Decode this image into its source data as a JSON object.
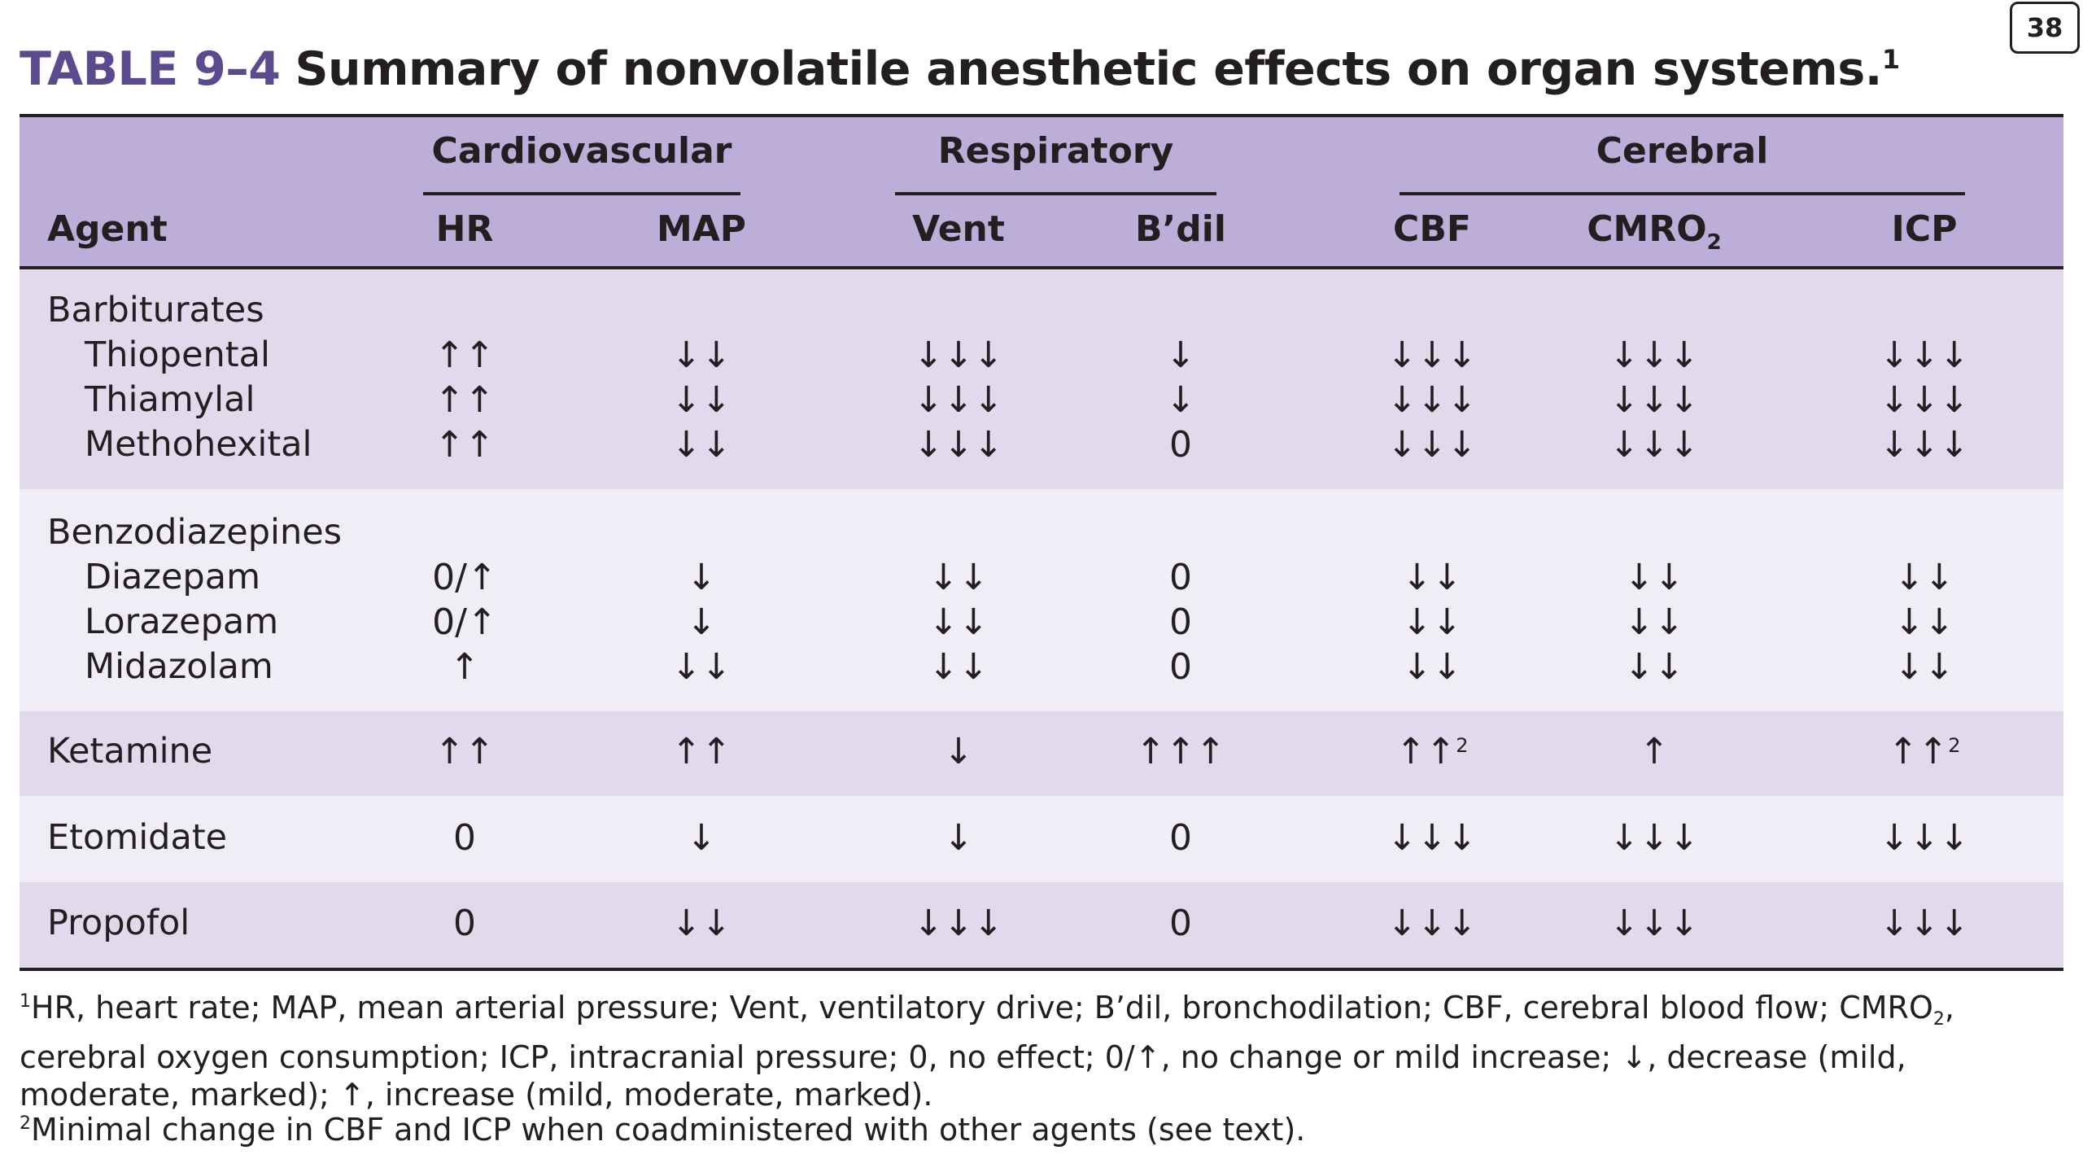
{
  "page_number": "38",
  "title": {
    "label": "TABLE 9–4",
    "text": "Summary of nonvolatile anesthetic effects on organ systems.",
    "footnote_ref": "1"
  },
  "groups": {
    "cardiovascular": "Cardiovascular",
    "respiratory": "Respiratory",
    "cerebral": "Cerebral"
  },
  "columns": {
    "agent": "Agent",
    "hr": "HR",
    "map": "MAP",
    "vent": "Vent",
    "bdil": "B’dil",
    "cbf": "CBF",
    "cmro": "CMRO",
    "cmro_sub": "2",
    "icp": "ICP"
  },
  "rows": [
    {
      "agent": "Barbiturates",
      "indent": false,
      "hr": "",
      "map": "",
      "vent": "",
      "bdil": "",
      "cbf": "",
      "cmro": "",
      "icp": ""
    },
    {
      "agent": "Thiopental",
      "indent": true,
      "hr": "↑↑",
      "map": "↓↓",
      "vent": "↓↓↓",
      "bdil": "↓",
      "cbf": "↓↓↓",
      "cmro": "↓↓↓",
      "icp": "↓↓↓"
    },
    {
      "agent": "Thiamylal",
      "indent": true,
      "hr": "↑↑",
      "map": "↓↓",
      "vent": "↓↓↓",
      "bdil": "↓",
      "cbf": "↓↓↓",
      "cmro": "↓↓↓",
      "icp": "↓↓↓"
    },
    {
      "agent": "Methohexital",
      "indent": true,
      "hr": "↑↑",
      "map": "↓↓",
      "vent": "↓↓↓",
      "bdil": "0",
      "cbf": "↓↓↓",
      "cmro": "↓↓↓",
      "icp": "↓↓↓"
    },
    {
      "agent": "Benzodiazepines",
      "indent": false,
      "hr": "",
      "map": "",
      "vent": "",
      "bdil": "",
      "cbf": "",
      "cmro": "",
      "icp": ""
    },
    {
      "agent": "Diazepam",
      "indent": true,
      "hr": "0/↑",
      "map": "↓",
      "vent": "↓↓",
      "bdil": "0",
      "cbf": "↓↓",
      "cmro": "↓↓",
      "icp": "↓↓"
    },
    {
      "agent": "Lorazepam",
      "indent": true,
      "hr": "0/↑",
      "map": "↓",
      "vent": "↓↓",
      "bdil": "0",
      "cbf": "↓↓",
      "cmro": "↓↓",
      "icp": "↓↓"
    },
    {
      "agent": "Midazolam",
      "indent": true,
      "hr": "↑",
      "map": "↓↓",
      "vent": "↓↓",
      "bdil": "0",
      "cbf": "↓↓",
      "cmro": "↓↓",
      "icp": "↓↓"
    },
    {
      "agent": "Ketamine",
      "indent": false,
      "hr": "↑↑",
      "map": "↑↑",
      "vent": "↓",
      "bdil": "↑↑↑",
      "cbf": "↑↑",
      "cbf_sup": "2",
      "cmro": "↑",
      "icp": "↑↑",
      "icp_sup": "2"
    },
    {
      "agent": "Etomidate",
      "indent": false,
      "hr": "0",
      "map": "↓",
      "vent": "↓",
      "bdil": "0",
      "cbf": "↓↓↓",
      "cmro": "↓↓↓",
      "icp": "↓↓↓"
    },
    {
      "agent": "Propofol",
      "indent": false,
      "hr": "0",
      "map": "↓↓",
      "vent": "↓↓↓",
      "bdil": "0",
      "cbf": "↓↓↓",
      "cmro": "↓↓↓",
      "icp": "↓↓↓"
    }
  ],
  "footnotes": {
    "fn1_mark": "1",
    "fn1_part1": "HR, heart rate; MAP, mean arterial pressure; Vent, ventilatory drive; B’dil, bronchodilation; CBF, cerebral blood flow; CMRO",
    "fn1_sub": "2",
    "fn1_part2": ", cerebral oxygen consumption; ICP, intracranial pressure; 0, no effect; 0/↑, no change or mild increase; ↓, decrease (mild, moderate, marked); ↑, increase (mild, moderate, marked).",
    "fn2_mark": "2",
    "fn2_text": "Minimal change in CBF and ICP when coadministered with other agents (see text)."
  }
}
